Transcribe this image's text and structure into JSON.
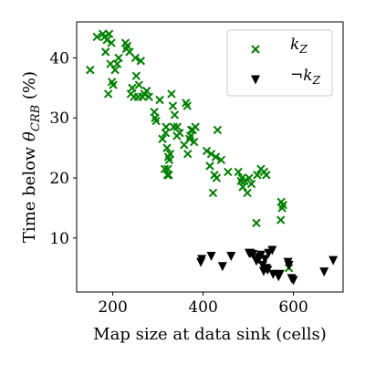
{
  "chart_data": {
    "type": "scatter",
    "xlabel": "Map size at data sink (cells)",
    "ylabel": "Time below θ_CRB (%)",
    "ylabel_parts": {
      "prefix": "Time below ",
      "theta": "θ",
      "subscript": "CRB",
      "suffix": " (%)"
    },
    "xlim": [
      120,
      710
    ],
    "ylim": [
      1,
      46
    ],
    "x_ticks": [
      200,
      400,
      600
    ],
    "y_ticks": [
      10,
      20,
      30,
      40
    ],
    "grid": false,
    "legend_position": "top-right",
    "series": [
      {
        "name": "k_Z",
        "label_parts": {
          "prefix": "",
          "main": "k",
          "subscript": "Z"
        },
        "color": "#008000",
        "marker": "x",
        "points": [
          [
            150,
            38
          ],
          [
            165,
            43.5
          ],
          [
            178,
            44
          ],
          [
            182,
            43.5
          ],
          [
            184,
            41
          ],
          [
            187,
            43
          ],
          [
            190,
            34
          ],
          [
            192,
            44
          ],
          [
            195,
            39
          ],
          [
            197,
            42.5
          ],
          [
            198,
            36
          ],
          [
            201,
            35.5
          ],
          [
            205,
            38
          ],
          [
            210,
            39
          ],
          [
            213,
            40
          ],
          [
            228,
            42.5
          ],
          [
            230,
            41.5
          ],
          [
            232,
            42
          ],
          [
            237,
            41
          ],
          [
            240,
            34
          ],
          [
            243,
            35
          ],
          [
            247,
            33.5
          ],
          [
            250,
            40
          ],
          [
            252,
            37
          ],
          [
            256,
            33.5
          ],
          [
            258,
            35.5
          ],
          [
            262,
            39.5
          ],
          [
            266,
            33.5
          ],
          [
            270,
            34
          ],
          [
            275,
            34.5
          ],
          [
            280,
            33.5
          ],
          [
            292,
            31
          ],
          [
            294,
            30
          ],
          [
            296,
            29.5
          ],
          [
            304,
            33
          ],
          [
            310,
            26.5
          ],
          [
            315,
            21.5
          ],
          [
            317,
            27.5
          ],
          [
            318,
            28.5
          ],
          [
            320,
            25
          ],
          [
            321,
            20.5
          ],
          [
            322,
            21.5
          ],
          [
            323,
            23.5
          ],
          [
            324,
            20.5
          ],
          [
            325,
            23
          ],
          [
            327,
            24
          ],
          [
            330,
            34
          ],
          [
            333,
            32
          ],
          [
            335,
            28.5
          ],
          [
            337,
            30.5
          ],
          [
            342,
            27
          ],
          [
            343,
            28.5
          ],
          [
            348,
            27.5
          ],
          [
            358,
            25.5
          ],
          [
            362,
            32.5
          ],
          [
            365,
            32
          ],
          [
            366,
            24
          ],
          [
            370,
            26.5
          ],
          [
            372,
            27
          ],
          [
            374,
            28
          ],
          [
            377,
            28
          ],
          [
            380,
            26
          ],
          [
            383,
            28.5
          ],
          [
            408,
            24.5
          ],
          [
            415,
            22
          ],
          [
            418,
            24
          ],
          [
            422,
            17.5
          ],
          [
            425,
            20.5
          ],
          [
            428,
            23.5
          ],
          [
            430,
            20
          ],
          [
            432,
            28
          ],
          [
            440,
            23
          ],
          [
            455,
            21
          ],
          [
            478,
            21
          ],
          [
            484,
            19.5
          ],
          [
            486,
            20
          ],
          [
            488,
            18.5
          ],
          [
            492,
            19.5
          ],
          [
            498,
            17.5
          ],
          [
            502,
            20
          ],
          [
            507,
            19
          ],
          [
            518,
            12.5
          ],
          [
            520,
            20.5
          ],
          [
            528,
            21.5
          ],
          [
            535,
            21
          ],
          [
            540,
            20.5
          ],
          [
            572,
            13
          ],
          [
            573,
            16
          ],
          [
            575,
            15
          ],
          [
            577,
            15.5
          ],
          [
            590,
            5
          ]
        ]
      },
      {
        "name": "¬k_Z",
        "label_parts": {
          "prefix": "¬",
          "main": "k",
          "subscript": "Z"
        },
        "color": "#000000",
        "marker": "triangle-down",
        "points": [
          [
            395,
            6
          ],
          [
            397,
            6.5
          ],
          [
            418,
            7
          ],
          [
            443,
            5.3
          ],
          [
            462,
            7
          ],
          [
            502,
            7.5
          ],
          [
            505,
            7.5
          ],
          [
            510,
            7.3
          ],
          [
            518,
            6.2
          ],
          [
            523,
            6.5
          ],
          [
            525,
            6.8
          ],
          [
            528,
            7.2
          ],
          [
            532,
            5.5
          ],
          [
            534,
            4.5
          ],
          [
            537,
            6.5
          ],
          [
            540,
            5
          ],
          [
            543,
            4.7
          ],
          [
            545,
            7.5
          ],
          [
            553,
            8
          ],
          [
            555,
            4
          ],
          [
            567,
            3.6
          ],
          [
            570,
            4
          ],
          [
            588,
            6
          ],
          [
            590,
            5.5
          ],
          [
            596,
            3.3
          ],
          [
            600,
            3
          ],
          [
            668,
            4.4
          ],
          [
            688,
            6.3
          ]
        ]
      }
    ]
  }
}
